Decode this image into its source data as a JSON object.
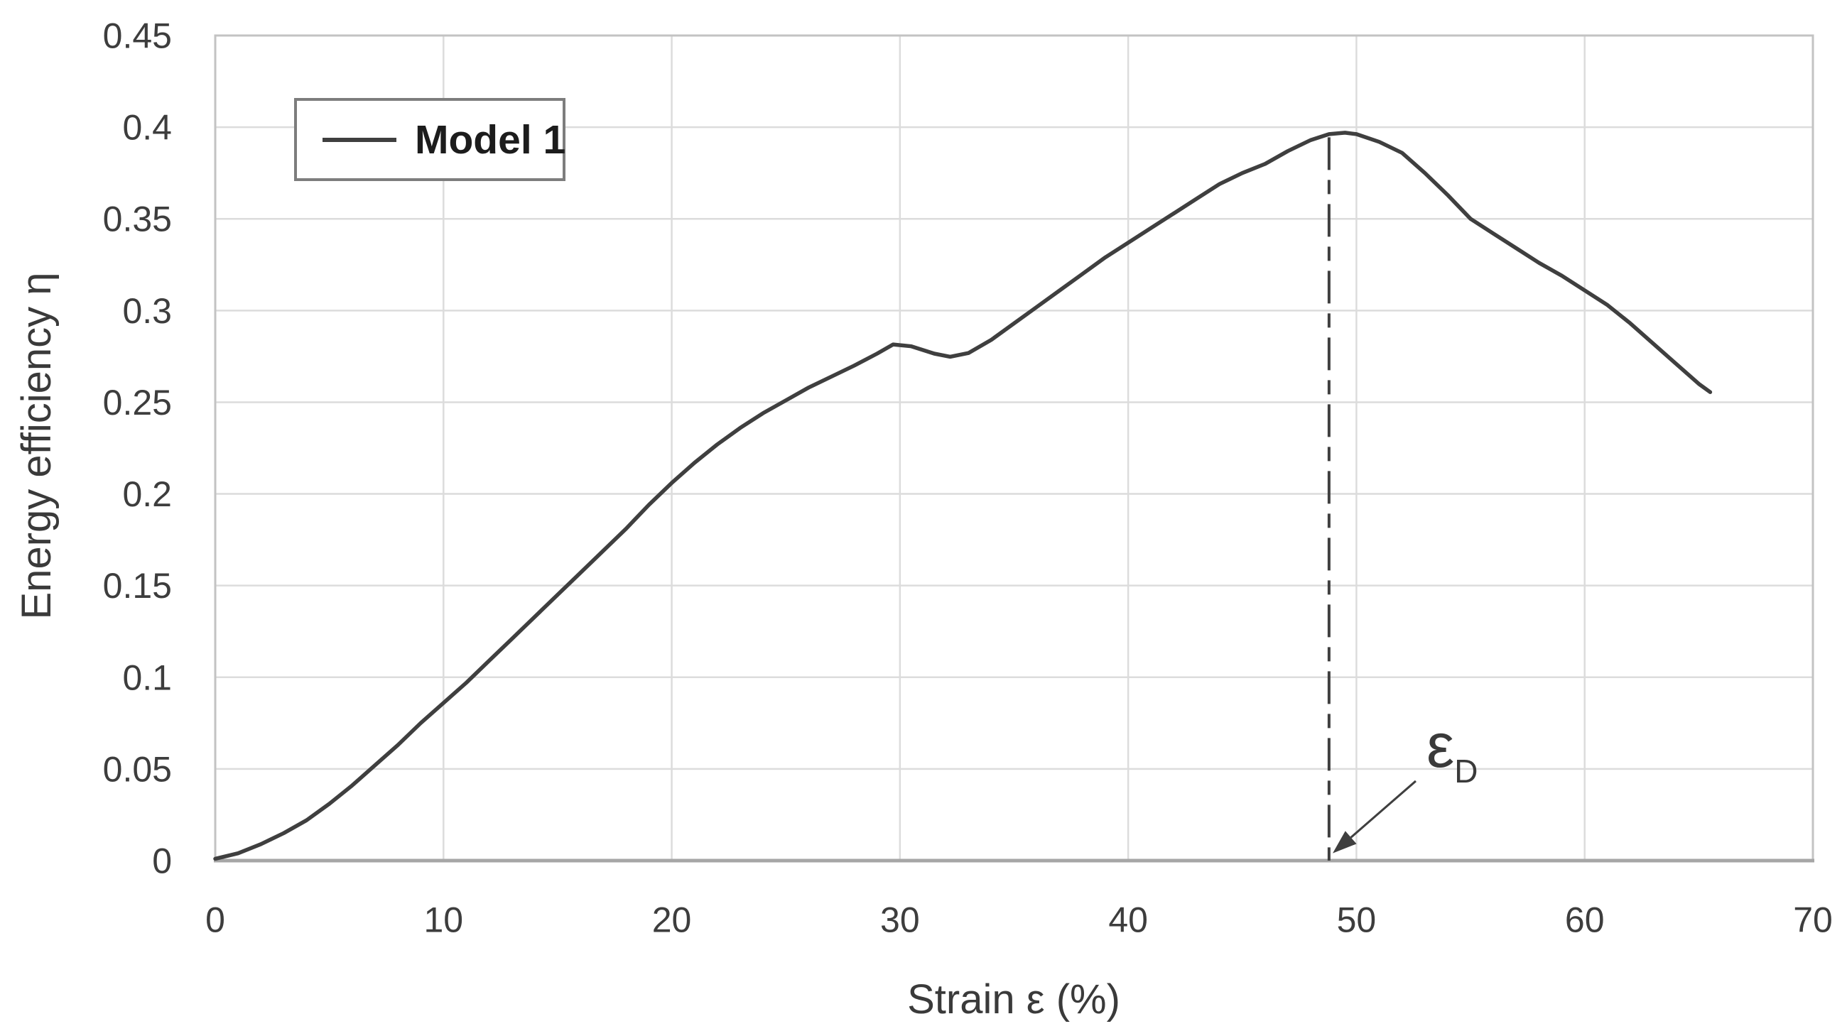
{
  "page": {
    "background": "#ffffff"
  },
  "colors": {
    "series": "#3f3f3f",
    "grid": "#dcdcdc",
    "plot_border": "#c3c3c3",
    "axis_line": "#a6a6a6",
    "text": "#3d3d3d"
  },
  "legend": {
    "label": "Model 1"
  },
  "titles": {
    "x_axis": "Strain ε (%)",
    "y_axis": "Energy efficiency η"
  },
  "annotation_label": {
    "main": "ε",
    "sub": "D"
  },
  "chart_data": {
    "type": "line",
    "title": "",
    "xlabel": "Strain ε (%)",
    "ylabel": "Energy efficiency η",
    "xlim": [
      0,
      70
    ],
    "ylim": [
      0,
      0.45
    ],
    "grid": true,
    "legend_position": "top-left",
    "x_ticks": [
      {
        "v": 0,
        "label": "0"
      },
      {
        "v": 10,
        "label": "10"
      },
      {
        "v": 20,
        "label": "20"
      },
      {
        "v": 30,
        "label": "30"
      },
      {
        "v": 40,
        "label": "40"
      },
      {
        "v": 50,
        "label": "50"
      },
      {
        "v": 60,
        "label": "60"
      },
      {
        "v": 70,
        "label": "70"
      }
    ],
    "y_ticks": [
      {
        "v": 0,
        "label": "0"
      },
      {
        "v": 0.05,
        "label": "0.05"
      },
      {
        "v": 0.1,
        "label": "0.1"
      },
      {
        "v": 0.15,
        "label": "0.15"
      },
      {
        "v": 0.2,
        "label": "0.2"
      },
      {
        "v": 0.25,
        "label": "0.25"
      },
      {
        "v": 0.3,
        "label": "0.3"
      },
      {
        "v": 0.35,
        "label": "0.35"
      },
      {
        "v": 0.4,
        "label": "0.4"
      },
      {
        "v": 0.45,
        "label": "0.45"
      }
    ],
    "series": [
      {
        "name": "Model 1",
        "color": "#3f3f3f",
        "line_width": 5.5,
        "points": [
          [
            0,
            0.001
          ],
          [
            1,
            0.004
          ],
          [
            2,
            0.009
          ],
          [
            3,
            0.015
          ],
          [
            4,
            0.022
          ],
          [
            5,
            0.031
          ],
          [
            6,
            0.041
          ],
          [
            7,
            0.052
          ],
          [
            8,
            0.063
          ],
          [
            9,
            0.075
          ],
          [
            10,
            0.086
          ],
          [
            11,
            0.097
          ],
          [
            12,
            0.109
          ],
          [
            13,
            0.121
          ],
          [
            14,
            0.133
          ],
          [
            15,
            0.145
          ],
          [
            16,
            0.157
          ],
          [
            17,
            0.169
          ],
          [
            18,
            0.181
          ],
          [
            19,
            0.194
          ],
          [
            20,
            0.206
          ],
          [
            21,
            0.217
          ],
          [
            22,
            0.227
          ],
          [
            23,
            0.236
          ],
          [
            24,
            0.244
          ],
          [
            25,
            0.251
          ],
          [
            26,
            0.258
          ],
          [
            27,
            0.264
          ],
          [
            28,
            0.27
          ],
          [
            29,
            0.2765
          ],
          [
            29.7,
            0.2815
          ],
          [
            30.5,
            0.2805
          ],
          [
            31.5,
            0.2765
          ],
          [
            32.2,
            0.2748
          ],
          [
            33,
            0.2768
          ],
          [
            34,
            0.284
          ],
          [
            35,
            0.293
          ],
          [
            36,
            0.302
          ],
          [
            37,
            0.311
          ],
          [
            38,
            0.32
          ],
          [
            39,
            0.329
          ],
          [
            40,
            0.337
          ],
          [
            41,
            0.345
          ],
          [
            42,
            0.353
          ],
          [
            43,
            0.361
          ],
          [
            44,
            0.369
          ],
          [
            45,
            0.375
          ],
          [
            46,
            0.38
          ],
          [
            47,
            0.387
          ],
          [
            48,
            0.393
          ],
          [
            48.8,
            0.3962
          ],
          [
            49.5,
            0.397
          ],
          [
            50,
            0.3962
          ],
          [
            51,
            0.392
          ],
          [
            52,
            0.386
          ],
          [
            53,
            0.375
          ],
          [
            54,
            0.363
          ],
          [
            55,
            0.35
          ],
          [
            56,
            0.342
          ],
          [
            57,
            0.334
          ],
          [
            58,
            0.326
          ],
          [
            59,
            0.319
          ],
          [
            60,
            0.311
          ],
          [
            61,
            0.303
          ],
          [
            62,
            0.293
          ],
          [
            63,
            0.282
          ],
          [
            64,
            0.271
          ],
          [
            65,
            0.26
          ],
          [
            65.5,
            0.2555
          ]
        ]
      }
    ],
    "annotations": {
      "peak_marker": {
        "label": "εD",
        "vline_x": 48.8,
        "vline_y_top": 0.3945,
        "vline_y_bottom": 0,
        "vline_style": "dash-dot",
        "arrow_tail": [
          52.6,
          0.0434
        ],
        "arrow_tip": [
          48.96,
          0.004
        ]
      }
    }
  }
}
